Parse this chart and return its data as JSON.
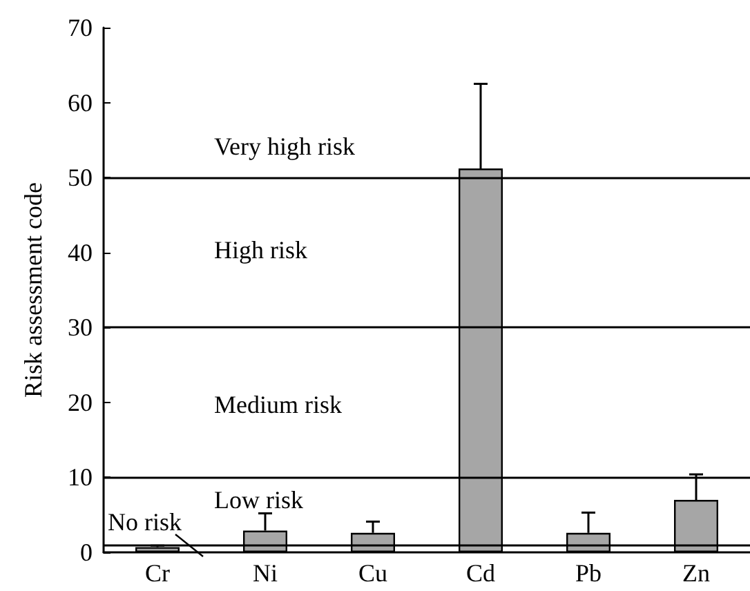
{
  "chart_data": {
    "type": "bar",
    "ylabel": "Risk assessment code",
    "categories": [
      "Cr",
      "Ni",
      "Cu",
      "Cd",
      "Pb",
      "Zn"
    ],
    "values": [
      0.7,
      2.9,
      2.6,
      51.2,
      2.6,
      7.0
    ],
    "errors": [
      [
        0.7,
        0.9
      ],
      [
        2.9,
        5.2
      ],
      [
        2.6,
        4.1
      ],
      [
        51.2,
        62.5
      ],
      [
        2.6,
        5.3
      ],
      [
        7.0,
        10.4
      ]
    ],
    "color": "#a6a6a6",
    "ylim": [
      0,
      70
    ],
    "yticks": [
      0,
      10,
      20,
      30,
      40,
      50,
      60,
      70
    ],
    "ref_lines": [
      {
        "axis": "y",
        "value": 1
      },
      {
        "axis": "y",
        "value": 10
      },
      {
        "axis": "y",
        "value": 30
      },
      {
        "axis": "y",
        "value": 50
      }
    ],
    "annotations": [
      "Very high risk",
      "High risk",
      "Medium risk",
      "Low risk",
      "No risk"
    ]
  }
}
